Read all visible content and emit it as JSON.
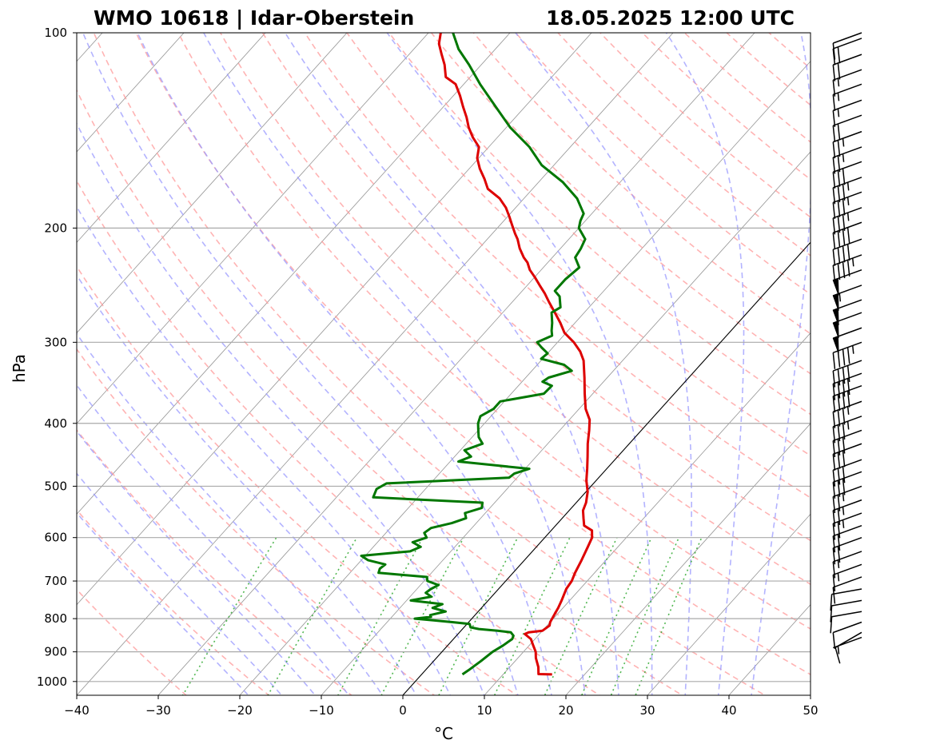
{
  "title_left": "WMO 10618 | Idar-Oberstein",
  "title_right": "18.05.2025 12:00 UTC",
  "colors": {
    "temperature": "#dd0000",
    "dewpoint": "#007700",
    "dry_adiabat": "#ff9999",
    "moist_adiabat": "#9999ff",
    "mixing_ratio": "#33aa33",
    "isotherm": "#888888",
    "isobar": "#aaaaaa"
  },
  "chart_data": {
    "type": "line",
    "subtype": "skew-T log-p diagram",
    "xlabel": "°C",
    "ylabel": "hPa",
    "xlim": [
      -40,
      50
    ],
    "ylim": [
      1050,
      100
    ],
    "y_scale": "log",
    "x_ticks": [
      -40,
      -30,
      -20,
      -10,
      0,
      10,
      20,
      30,
      40,
      50
    ],
    "y_ticks": [
      1000,
      900,
      800,
      700,
      600,
      500,
      400,
      300,
      200,
      100
    ],
    "highlighted_isotherm_c": 0,
    "series": [
      {
        "key": "temperature",
        "points": [
          [
            975,
            16.0
          ],
          [
            974,
            14.3
          ],
          [
            950,
            13.5
          ],
          [
            920,
            12.2
          ],
          [
            900,
            11.5
          ],
          [
            880,
            10.5
          ],
          [
            860,
            9.5
          ],
          [
            845,
            8.2
          ],
          [
            840,
            8.5
          ],
          [
            835,
            10.0
          ],
          [
            820,
            10.3
          ],
          [
            810,
            10.0
          ],
          [
            790,
            9.7
          ],
          [
            770,
            9.4
          ],
          [
            750,
            9.0
          ],
          [
            720,
            8.3
          ],
          [
            700,
            8.1
          ],
          [
            680,
            7.6
          ],
          [
            650,
            7.0
          ],
          [
            620,
            6.3
          ],
          [
            600,
            5.8
          ],
          [
            585,
            5.0
          ],
          [
            575,
            3.5
          ],
          [
            560,
            2.6
          ],
          [
            545,
            1.7
          ],
          [
            530,
            1.2
          ],
          [
            510,
            0.2
          ],
          [
            490,
            -1.2
          ],
          [
            470,
            -2.4
          ],
          [
            450,
            -3.7
          ],
          [
            430,
            -5.1
          ],
          [
            410,
            -6.4
          ],
          [
            395,
            -7.5
          ],
          [
            380,
            -9.2
          ],
          [
            360,
            -11.0
          ],
          [
            340,
            -12.8
          ],
          [
            320,
            -14.8
          ],
          [
            310,
            -16.2
          ],
          [
            300,
            -18.0
          ],
          [
            290,
            -20.2
          ],
          [
            280,
            -21.8
          ],
          [
            270,
            -23.6
          ],
          [
            260,
            -25.5
          ],
          [
            252,
            -27.0
          ],
          [
            245,
            -28.5
          ],
          [
            238,
            -30.0
          ],
          [
            232,
            -31.4
          ],
          [
            226,
            -32.5
          ],
          [
            222,
            -33.5
          ],
          [
            215,
            -35.0
          ],
          [
            208,
            -36.3
          ],
          [
            204,
            -37.2
          ],
          [
            198,
            -38.5
          ],
          [
            192,
            -39.8
          ],
          [
            186,
            -41.2
          ],
          [
            180,
            -43.0
          ],
          [
            174,
            -45.5
          ],
          [
            168,
            -47.0
          ],
          [
            162,
            -48.7
          ],
          [
            156,
            -50.2
          ],
          [
            150,
            -51.2
          ],
          [
            145,
            -53.0
          ],
          [
            140,
            -54.6
          ],
          [
            135,
            -56.0
          ],
          [
            130,
            -57.6
          ],
          [
            125,
            -59.2
          ],
          [
            120,
            -61.0
          ],
          [
            117,
            -63.0
          ],
          [
            112,
            -64.5
          ],
          [
            108,
            -66.0
          ],
          [
            104,
            -67.5
          ],
          [
            100,
            -68.5
          ]
        ]
      },
      {
        "key": "dewpoint",
        "points": [
          [
            975,
            5.0
          ],
          [
            960,
            5.3
          ],
          [
            930,
            5.8
          ],
          [
            900,
            6.2
          ],
          [
            880,
            6.8
          ],
          [
            860,
            7.2
          ],
          [
            850,
            7.0
          ],
          [
            840,
            6.3
          ],
          [
            835,
            4.5
          ],
          [
            830,
            2.0
          ],
          [
            825,
            0.8
          ],
          [
            815,
            0.3
          ],
          [
            810,
            -2.0
          ],
          [
            805,
            -4.5
          ],
          [
            800,
            -7.0
          ],
          [
            795,
            -5.2
          ],
          [
            790,
            -5.5
          ],
          [
            780,
            -4.0
          ],
          [
            770,
            -6.0
          ],
          [
            760,
            -5.2
          ],
          [
            750,
            -9.5
          ],
          [
            740,
            -7.4
          ],
          [
            730,
            -8.5
          ],
          [
            720,
            -8.3
          ],
          [
            710,
            -7.8
          ],
          [
            700,
            -9.6
          ],
          [
            690,
            -10.1
          ],
          [
            680,
            -16.5
          ],
          [
            670,
            -16.8
          ],
          [
            660,
            -16.6
          ],
          [
            650,
            -19.2
          ],
          [
            640,
            -20.5
          ],
          [
            630,
            -15.0
          ],
          [
            620,
            -14.2
          ],
          [
            610,
            -15.7
          ],
          [
            600,
            -14.5
          ],
          [
            590,
            -15.3
          ],
          [
            580,
            -15.0
          ],
          [
            570,
            -13.0
          ],
          [
            560,
            -11.8
          ],
          [
            550,
            -12.5
          ],
          [
            540,
            -11.0
          ],
          [
            530,
            -11.5
          ],
          [
            520,
            -25.5
          ],
          [
            505,
            -26.0
          ],
          [
            495,
            -25.4
          ],
          [
            485,
            -11.0
          ],
          [
            478,
            -10.8
          ],
          [
            470,
            -9.5
          ],
          [
            465,
            -13.5
          ],
          [
            458,
            -19.0
          ],
          [
            450,
            -18.0
          ],
          [
            440,
            -19.5
          ],
          [
            430,
            -18.0
          ],
          [
            420,
            -19.2
          ],
          [
            410,
            -20.0
          ],
          [
            400,
            -20.8
          ],
          [
            390,
            -21.3
          ],
          [
            380,
            -20.5
          ],
          [
            370,
            -20.5
          ],
          [
            360,
            -16.0
          ],
          [
            350,
            -15.9
          ],
          [
            345,
            -17.5
          ],
          [
            340,
            -17.2
          ],
          [
            332,
            -15.1
          ],
          [
            325,
            -16.7
          ],
          [
            318,
            -20.2
          ],
          [
            312,
            -20.0
          ],
          [
            305,
            -21.5
          ],
          [
            300,
            -22.5
          ],
          [
            293,
            -21.4
          ],
          [
            288,
            -22.0
          ],
          [
            280,
            -22.8
          ],
          [
            270,
            -24.0
          ],
          [
            265,
            -23.5
          ],
          [
            255,
            -24.8
          ],
          [
            250,
            -26.0
          ],
          [
            240,
            -26.0
          ],
          [
            230,
            -25.6
          ],
          [
            222,
            -27.2
          ],
          [
            215,
            -27.5
          ],
          [
            208,
            -28.0
          ],
          [
            200,
            -30.0
          ],
          [
            195,
            -30.6
          ],
          [
            190,
            -31.0
          ],
          [
            180,
            -33.5
          ],
          [
            170,
            -37.0
          ],
          [
            160,
            -41.5
          ],
          [
            150,
            -45.0
          ],
          [
            140,
            -49.5
          ],
          [
            130,
            -53.6
          ],
          [
            120,
            -58.0
          ],
          [
            112,
            -61.5
          ],
          [
            106,
            -64.5
          ],
          [
            100,
            -67.0
          ]
        ]
      }
    ],
    "wind_barbs": [
      {
        "p": 855,
        "speed_kt": 5,
        "dir": 250
      },
      {
        "p": 840,
        "speed_kt": 10,
        "dir": 240
      },
      {
        "p": 810,
        "speed_kt": 10,
        "dir": 250
      },
      {
        "p": 780,
        "speed_kt": 10,
        "dir": 260
      },
      {
        "p": 750,
        "speed_kt": 10,
        "dir": 260
      },
      {
        "p": 720,
        "speed_kt": 10,
        "dir": 260
      },
      {
        "p": 690,
        "speed_kt": 10,
        "dir": 250
      },
      {
        "p": 660,
        "speed_kt": 15,
        "dir": 250
      },
      {
        "p": 630,
        "speed_kt": 15,
        "dir": 250
      },
      {
        "p": 600,
        "speed_kt": 20,
        "dir": 250
      },
      {
        "p": 575,
        "speed_kt": 20,
        "dir": 250
      },
      {
        "p": 550,
        "speed_kt": 25,
        "dir": 250
      },
      {
        "p": 525,
        "speed_kt": 25,
        "dir": 250
      },
      {
        "p": 500,
        "speed_kt": 25,
        "dir": 250
      },
      {
        "p": 475,
        "speed_kt": 30,
        "dir": 250
      },
      {
        "p": 455,
        "speed_kt": 30,
        "dir": 250
      },
      {
        "p": 430,
        "speed_kt": 30,
        "dir": 250
      },
      {
        "p": 410,
        "speed_kt": 30,
        "dir": 250
      },
      {
        "p": 390,
        "speed_kt": 35,
        "dir": 250
      },
      {
        "p": 370,
        "speed_kt": 35,
        "dir": 250
      },
      {
        "p": 350,
        "speed_kt": 40,
        "dir": 250
      },
      {
        "p": 335,
        "speed_kt": 40,
        "dir": 250
      },
      {
        "p": 320,
        "speed_kt": 40,
        "dir": 250
      },
      {
        "p": 300,
        "speed_kt": 45,
        "dir": 250
      },
      {
        "p": 285,
        "speed_kt": 50,
        "dir": 250
      },
      {
        "p": 270,
        "speed_kt": 50,
        "dir": 250
      },
      {
        "p": 258,
        "speed_kt": 50,
        "dir": 250
      },
      {
        "p": 245,
        "speed_kt": 55,
        "dir": 250
      },
      {
        "p": 232,
        "speed_kt": 50,
        "dir": 250
      },
      {
        "p": 220,
        "speed_kt": 45,
        "dir": 250
      },
      {
        "p": 208,
        "speed_kt": 40,
        "dir": 250
      },
      {
        "p": 196,
        "speed_kt": 40,
        "dir": 250
      },
      {
        "p": 186,
        "speed_kt": 35,
        "dir": 250
      },
      {
        "p": 176,
        "speed_kt": 35,
        "dir": 250
      },
      {
        "p": 167,
        "speed_kt": 35,
        "dir": 250
      },
      {
        "p": 158,
        "speed_kt": 30,
        "dir": 250
      },
      {
        "p": 150,
        "speed_kt": 25,
        "dir": 250
      },
      {
        "p": 142,
        "speed_kt": 25,
        "dir": 250
      },
      {
        "p": 134,
        "speed_kt": 20,
        "dir": 250
      },
      {
        "p": 127,
        "speed_kt": 15,
        "dir": 250
      },
      {
        "p": 120,
        "speed_kt": 15,
        "dir": 250
      },
      {
        "p": 114,
        "speed_kt": 15,
        "dir": 250
      },
      {
        "p": 108,
        "speed_kt": 20,
        "dir": 250
      },
      {
        "p": 102,
        "speed_kt": 20,
        "dir": 250
      },
      {
        "p": 100,
        "speed_kt": 10,
        "dir": 250
      }
    ]
  }
}
